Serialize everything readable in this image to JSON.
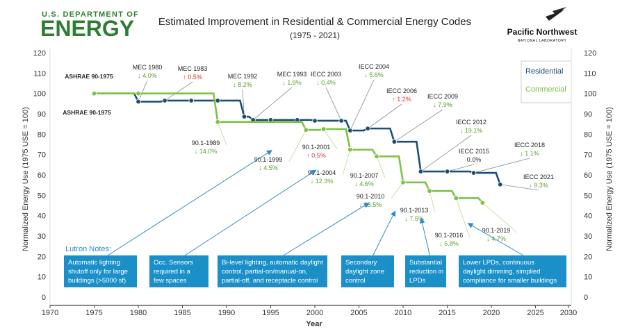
{
  "header": {
    "doe_top": "U.S. DEPARTMENT OF",
    "doe_main": "ENERGY",
    "pnnl_main": "Pacific Northwest",
    "pnnl_sub": "NATIONAL LABORATORY"
  },
  "chart_data": {
    "type": "step-line",
    "title": "Estimated Improvement in Residential & Commercial Energy Codes",
    "subtitle": "(1975 - 2021)",
    "x_label": "Year",
    "y_label": "Normalized Energy Use (1975 USE = 100)",
    "y2_label": "Normalized Energy Use (1975 USE = 100)",
    "xlim": [
      1970,
      2030
    ],
    "xticks": [
      1970,
      1975,
      1980,
      1985,
      1990,
      1995,
      2000,
      2005,
      2010,
      2015,
      2020,
      2025,
      2030
    ],
    "ylim": [
      0,
      120
    ],
    "yticks": [
      0,
      10,
      20,
      30,
      40,
      50,
      60,
      70,
      80,
      90,
      100,
      110,
      120
    ],
    "y2lim": [
      0,
      120
    ],
    "y2ticks": [
      0,
      10,
      20,
      30,
      40,
      50,
      60,
      70,
      80,
      90,
      100,
      110,
      120
    ],
    "legend": "top-right",
    "series": [
      {
        "name": "Residential",
        "color": "#1d4e73",
        "x": [
          1975,
          1980,
          1983,
          1986,
          1989,
          1992,
          1993,
          1995,
          1998,
          2000,
          2003,
          2004,
          2006,
          2009,
          2012,
          2015,
          2018,
          2021
        ],
        "values": [
          100,
          96,
          96.5,
          96.5,
          96.5,
          88.6,
          87,
          87,
          87,
          86.6,
          86.6,
          81.8,
          82.8,
          76.3,
          61.7,
          61.7,
          61,
          55.3
        ],
        "labels": [
          "ASHRAE 90-1975",
          "MEC 1980",
          "MEC 1983",
          null,
          null,
          "MEC 1992",
          "MEC 1993",
          null,
          null,
          null,
          "IECC 2003",
          "IECC 2004",
          "IECC 2006",
          "IECC 2009",
          "IECC 2012",
          "IECC 2015",
          "IECC 2018",
          "IECC 2021"
        ],
        "change_labels": [
          null,
          "↓ 4.0%",
          "↑ 0.5%",
          null,
          null,
          "↓ 8.2%",
          "↓ 1.9%",
          null,
          null,
          null,
          "↓ 0.4%",
          "↓ 5.6%",
          "↑ 1.2%",
          "↓ 7.9%",
          "↓ 19.1%",
          "0.0%",
          "↓ 1.1%",
          "↓ 9.3%"
        ]
      },
      {
        "name": "Commercial",
        "color": "#7dc243",
        "x": [
          1975,
          1980,
          1989,
          1999,
          2001,
          2004,
          2007,
          2010,
          2013,
          2016,
          2019
        ],
        "values": [
          100,
          100,
          86,
          82.1,
          82.5,
          72.4,
          69.1,
          56.3,
          52.1,
          48.6,
          46.3
        ],
        "labels": [
          "ASHRAE 90-1975",
          null,
          "90.1-1989",
          "90.1-1999",
          "90.1-2001",
          "90.1-2004",
          "90.1-2007",
          "90.1-2010",
          "90.1-2013",
          "90.1-2016",
          "90.1-2019"
        ],
        "change_labels": [
          null,
          null,
          "↓ 14.0%",
          "↓ 4.5%",
          "↑ 0.5%",
          "↓ 12.3%",
          "↓ 4.6%",
          "↓ 18.5%",
          "↓ 7.5%",
          "↓ 6.8%",
          "↓ 4.7%"
        ]
      }
    ]
  },
  "notes": {
    "title": "Lutron Notes:",
    "items": [
      {
        "lines": [
          "Automatic lighting",
          "shutoff only for large",
          "buildings (>5000 sf)"
        ],
        "target": "90.1-1999"
      },
      {
        "lines": [
          "Occ. Sensors",
          "required in a",
          "few spaces"
        ],
        "target": "90.1-2004"
      },
      {
        "lines": [
          "Bi-level lighting, automatic daylight",
          "control, partial-on/manual-on,",
          "partial-off, and receptacle control"
        ],
        "target": "90.1-2010"
      },
      {
        "lines": [
          "Secondary",
          "daylight zone",
          "control"
        ],
        "target": "90.1-2013"
      },
      {
        "lines": [
          "Substantial",
          "reduction in",
          "LPDs"
        ],
        "target": "90.1-2016"
      },
      {
        "lines": [
          "Lower LPDs, continuous",
          "daylight dimming, simplied",
          "compliance for smaller buildings"
        ],
        "target": "90.1-2019"
      }
    ]
  }
}
